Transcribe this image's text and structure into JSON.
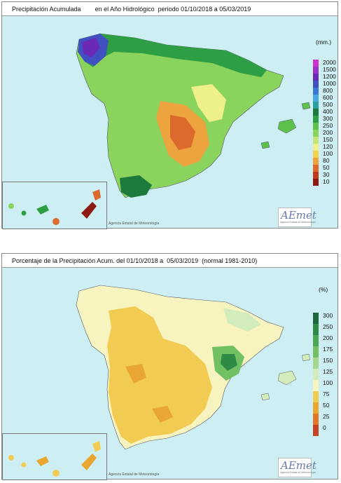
{
  "panels": [
    {
      "title": "Precipitación Acumulada",
      "subtitle": "en el Año Hidrológico  periodo 01/10/2018 a 05/03/2019",
      "legend_unit": "(mm.)",
      "legend_items": [
        {
          "label": "2000",
          "color": "#cc33cc"
        },
        {
          "label": "1500",
          "color": "#9b30c8"
        },
        {
          "label": "1200",
          "color": "#6a2ab6"
        },
        {
          "label": "1000",
          "color": "#4050c0"
        },
        {
          "label": "800",
          "color": "#3c78d8"
        },
        {
          "label": "600",
          "color": "#48a8e0"
        },
        {
          "label": "500",
          "color": "#2aa0a0"
        },
        {
          "label": "400",
          "color": "#1c7a3c"
        },
        {
          "label": "300",
          "color": "#2e9e44"
        },
        {
          "label": "250",
          "color": "#5cc04a"
        },
        {
          "label": "200",
          "color": "#8ad35c"
        },
        {
          "label": "150",
          "color": "#c4e678"
        },
        {
          "label": "120",
          "color": "#eef08a"
        },
        {
          "label": "100",
          "color": "#f2d24e"
        },
        {
          "label": "80",
          "color": "#eda33e"
        },
        {
          "label": "50",
          "color": "#dc6a2c"
        },
        {
          "label": "30",
          "color": "#c03a20"
        },
        {
          "label": "10",
          "color": "#8c1a10"
        }
      ],
      "credit": "Agencia Estatal de Meteorología",
      "logo_text": "AEmet"
    },
    {
      "title": "Porcentaje de la Precipitación Acum. del 01/10/2018 a  05/03/2019  (normal 1981-2010)",
      "subtitle": "",
      "legend_unit": "(%)",
      "legend_items": [
        {
          "label": "300",
          "color": "#1c6a3a"
        },
        {
          "label": "250",
          "color": "#2e8a44"
        },
        {
          "label": "200",
          "color": "#4aa852"
        },
        {
          "label": "175",
          "color": "#72c064"
        },
        {
          "label": "150",
          "color": "#a4d88c"
        },
        {
          "label": "125",
          "color": "#d2ecbc"
        },
        {
          "label": "100",
          "color": "#f7f4c0"
        },
        {
          "label": "75",
          "color": "#f2cc52"
        },
        {
          "label": "50",
          "color": "#eaa632"
        },
        {
          "label": "25",
          "color": "#e0782c"
        },
        {
          "label": "0",
          "color": "#c64422"
        }
      ],
      "credit": "Agencia Estatal de Meteorología",
      "logo_text": "AEmet"
    }
  ]
}
